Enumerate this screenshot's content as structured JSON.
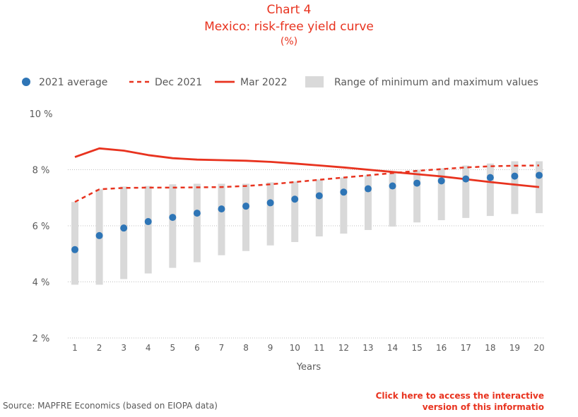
{
  "header": {
    "chart_number": "Chart 4",
    "title": "Mexico: risk-free yield curve",
    "unit": "(%)"
  },
  "footer": {
    "source": "Source: MAPFRE Economics (based on EIOPA data)",
    "cta_line1": "Click here to access the interactive",
    "cta_line2": "version of this informatio"
  },
  "colors": {
    "accent": "#e8331f",
    "dots": "#2e75b6",
    "range": "#d9d9d9",
    "text": "#595959"
  },
  "chart_data": {
    "type": "line",
    "title": "Mexico: risk-free yield curve",
    "xlabel": "Years",
    "ylabel": "",
    "x": [
      1,
      2,
      3,
      4,
      5,
      6,
      7,
      8,
      9,
      10,
      11,
      12,
      13,
      14,
      15,
      16,
      17,
      18,
      19,
      20
    ],
    "ylim": [
      2,
      10
    ],
    "yticks": [
      2,
      4,
      6,
      8,
      10
    ],
    "ytick_labels": [
      "2 %",
      "4 %",
      "6 %",
      "8 %",
      "10 %"
    ],
    "legend_position": "top",
    "series": [
      {
        "name": "2021 average",
        "kind": "scatter",
        "values": [
          5.15,
          5.65,
          5.92,
          6.15,
          6.3,
          6.45,
          6.6,
          6.7,
          6.82,
          6.95,
          7.07,
          7.2,
          7.32,
          7.42,
          7.52,
          7.6,
          7.67,
          7.72,
          7.77,
          7.8
        ]
      },
      {
        "name": "Dec 2021",
        "kind": "dashed-line",
        "values": [
          6.85,
          7.3,
          7.35,
          7.36,
          7.36,
          7.37,
          7.38,
          7.42,
          7.48,
          7.56,
          7.64,
          7.72,
          7.8,
          7.88,
          7.96,
          8.02,
          8.08,
          8.12,
          8.14,
          8.15
        ]
      },
      {
        "name": "Mar 2022",
        "kind": "line",
        "values": [
          8.45,
          8.76,
          8.68,
          8.52,
          8.41,
          8.36,
          8.34,
          8.32,
          8.28,
          8.22,
          8.15,
          8.08,
          8.0,
          7.92,
          7.84,
          7.76,
          7.66,
          7.56,
          7.47,
          7.38
        ]
      },
      {
        "name": "Range of minimum and maximum values",
        "kind": "range-bar",
        "min": [
          3.9,
          3.9,
          4.1,
          4.3,
          4.5,
          4.7,
          4.95,
          5.1,
          5.3,
          5.42,
          5.62,
          5.72,
          5.85,
          5.97,
          6.12,
          6.2,
          6.28,
          6.35,
          6.42,
          6.45
        ],
        "max": [
          6.85,
          7.3,
          7.4,
          7.42,
          7.48,
          7.5,
          7.5,
          7.5,
          7.55,
          7.58,
          7.65,
          7.72,
          7.8,
          7.9,
          7.98,
          8.05,
          8.15,
          8.22,
          8.3,
          8.3
        ]
      }
    ]
  }
}
